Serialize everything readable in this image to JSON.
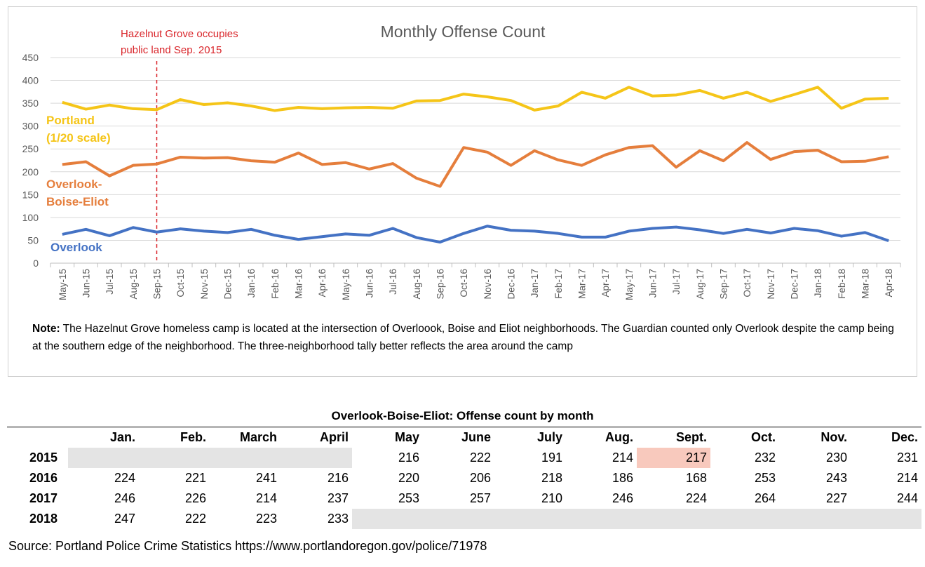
{
  "chart_data": {
    "type": "line",
    "title": "Monthly Offense Count",
    "categories": [
      "May-15",
      "Jun-15",
      "Jul-15",
      "Aug-15",
      "Sep-15",
      "Oct-15",
      "Nov-15",
      "Dec-15",
      "Jan-16",
      "Feb-16",
      "Mar-16",
      "Apr-16",
      "May-16",
      "Jun-16",
      "Jul-16",
      "Aug-16",
      "Sep-16",
      "Oct-16",
      "Nov-16",
      "Dec-16",
      "Jan-17",
      "Feb-17",
      "Mar-17",
      "Apr-17",
      "May-17",
      "Jun-17",
      "Jul-17",
      "Aug-17",
      "Sep-17",
      "Oct-17",
      "Nov-17",
      "Dec-17",
      "Jan-18",
      "Feb-18",
      "Mar-18",
      "Apr-18"
    ],
    "ylim": [
      0,
      450
    ],
    "yticks": [
      "0",
      "50",
      "100",
      "150",
      "200",
      "250",
      "300",
      "350",
      "400",
      "450"
    ],
    "grid": true,
    "series": [
      {
        "name": "Portland (1/20 scale)",
        "label_lines": [
          "Portland",
          "(1/20 scale)"
        ],
        "color": "#f5c518",
        "values": [
          352,
          337,
          346,
          338,
          336,
          358,
          347,
          351,
          344,
          334,
          341,
          338,
          340,
          341,
          339,
          355,
          356,
          370,
          364,
          356,
          335,
          344,
          374,
          361,
          385,
          366,
          368,
          378,
          361,
          374,
          354,
          369,
          385,
          339,
          359,
          361
        ]
      },
      {
        "name": "Overlook-Boise-Eliot",
        "label_lines": [
          "Overlook-",
          "Boise-Eliot"
        ],
        "color": "#e57e3c",
        "values": [
          216,
          222,
          191,
          214,
          217,
          232,
          230,
          231,
          224,
          221,
          241,
          216,
          220,
          206,
          218,
          186,
          168,
          253,
          243,
          214,
          246,
          226,
          214,
          237,
          253,
          257,
          210,
          246,
          224,
          264,
          227,
          244,
          247,
          222,
          223,
          233
        ]
      },
      {
        "name": "Overlook",
        "label_lines": [
          "Overlook"
        ],
        "color": "#4472c4",
        "values": [
          63,
          74,
          60,
          78,
          68,
          75,
          70,
          67,
          74,
          61,
          52,
          58,
          64,
          61,
          76,
          56,
          46,
          65,
          81,
          72,
          70,
          65,
          57,
          57,
          70,
          76,
          79,
          73,
          65,
          74,
          66,
          76,
          71,
          59,
          67,
          49
        ]
      }
    ],
    "annotation": {
      "lines": [
        "Hazelnut Grove occupies",
        "public land Sep. 2015"
      ],
      "at": "Sep-15",
      "color": "#d9252a"
    }
  },
  "note": {
    "bold": "Note:",
    "text": " The Hazelnut Grove homeless camp is located at the intersection of Overloook, Boise and Eliot neighborhoods. The Guardian counted only Overlook despite the camp being at the southern edge of the neighborhood. The three-neighborhood tally better reflects the area around the camp"
  },
  "table": {
    "title": "Overlook-Boise-Eliot: Offense count by month",
    "headers": [
      "Jan.",
      "Feb.",
      "March",
      "April",
      "May",
      "June",
      "July",
      "Aug.",
      "Sept.",
      "Oct.",
      "Nov.",
      "Dec."
    ],
    "highlight_color": "#f8c9bd",
    "rows": [
      {
        "year": "2015",
        "cells": [
          "",
          "",
          "",
          "",
          "216",
          "222",
          "191",
          "214",
          "217",
          "232",
          "230",
          "231"
        ]
      },
      {
        "year": "2016",
        "cells": [
          "224",
          "221",
          "241",
          "216",
          "220",
          "206",
          "218",
          "186",
          "168",
          "253",
          "243",
          "214"
        ]
      },
      {
        "year": "2017",
        "cells": [
          "246",
          "226",
          "214",
          "237",
          "253",
          "257",
          "210",
          "246",
          "224",
          "264",
          "227",
          "244"
        ]
      },
      {
        "year": "2018",
        "cells": [
          "247",
          "222",
          "223",
          "233",
          "",
          "",
          "",
          "",
          "",
          "",
          "",
          ""
        ]
      }
    ]
  },
  "source": "Source: Portland Police Crime Statistics https://www.portlandoregon.gov/police/71978"
}
